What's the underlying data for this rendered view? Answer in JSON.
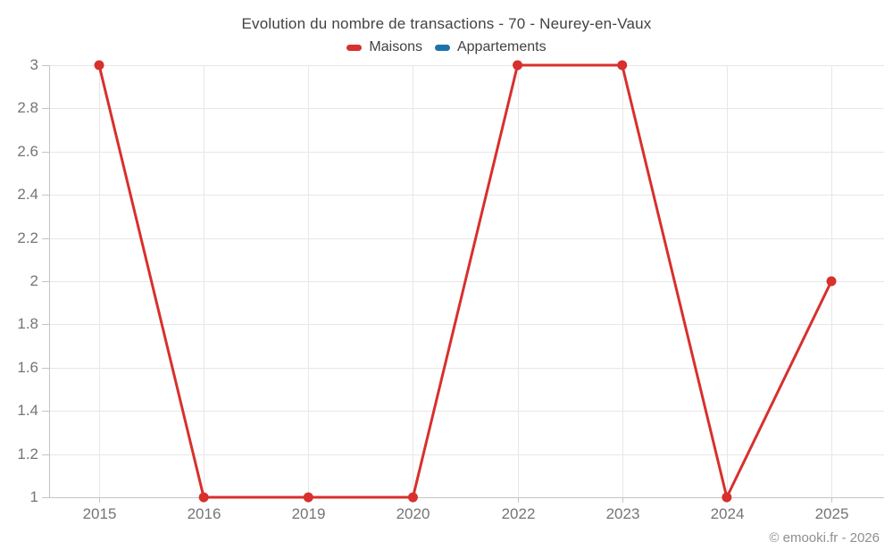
{
  "header": {
    "title": "Evolution du nombre de transactions - 70 - Neurey-en-Vaux"
  },
  "legend": {
    "items": [
      {
        "label": "Maisons",
        "color": "#d7302d"
      },
      {
        "label": "Appartements",
        "color": "#1b74a8"
      }
    ]
  },
  "footer": {
    "copyright": "© emooki.fr - 2026"
  },
  "chart_data": {
    "type": "line",
    "title": "Evolution du nombre de transactions - 70 - Neurey-en-Vaux",
    "categories": [
      "2015",
      "2016",
      "2019",
      "2020",
      "2022",
      "2023",
      "2024",
      "2025"
    ],
    "series": [
      {
        "name": "Maisons",
        "color": "#d7302d",
        "values": [
          3,
          1,
          1,
          1,
          3,
          3,
          1,
          2
        ]
      },
      {
        "name": "Appartements",
        "color": "#1b74a8",
        "values": []
      }
    ],
    "xlabel": "",
    "ylabel": "",
    "ylim": [
      1,
      3
    ],
    "yticks": [
      1,
      1.2,
      1.4,
      1.6,
      1.8,
      2,
      2.2,
      2.4,
      2.6,
      2.8,
      3
    ],
    "grid": true,
    "legend_position": "top",
    "line_width": 3,
    "point_radius": 5.5
  },
  "colors": {
    "background": "#ffffff",
    "grid": "#e7e7e7",
    "axis": "#c4c4c4",
    "tick_label": "#757575",
    "title_text": "#424242",
    "copyright_text": "#8f8f8f"
  }
}
